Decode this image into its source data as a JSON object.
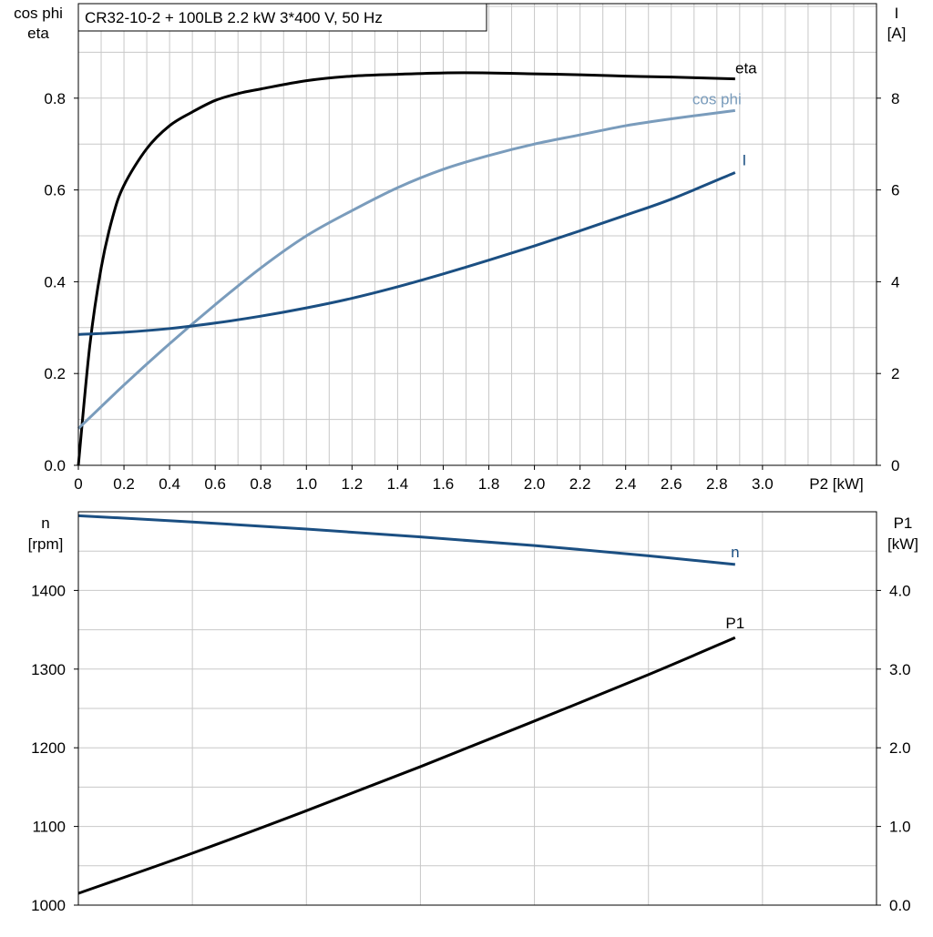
{
  "chart_data": [
    {
      "type": "line",
      "title": "CR32-10-2 + 100LB   2.2 kW   3*400 V, 50 Hz",
      "xlabel": "P2 [kW]",
      "ylabel_left": [
        "cos phi",
        "eta"
      ],
      "ylabel_right": [
        "I",
        "[A]"
      ],
      "xlim": [
        0,
        3.5
      ],
      "ylim_left": [
        0,
        1.0
      ],
      "ylim_right": [
        0,
        10
      ],
      "x_ticks": [
        "0",
        "0.2",
        "0.4",
        "0.6",
        "0.8",
        "1.0",
        "1.2",
        "1.4",
        "1.6",
        "1.8",
        "2.0",
        "2.2",
        "2.4",
        "2.6",
        "2.8",
        "3.0"
      ],
      "y_left_ticks": [
        "0.0",
        "0.2",
        "0.4",
        "0.6",
        "0.8"
      ],
      "y_right_ticks": [
        "0",
        "2",
        "4",
        "6",
        "8"
      ],
      "grid": true,
      "series": [
        {
          "name": "eta",
          "axis": "left",
          "color": "#000000",
          "x": [
            0,
            0.05,
            0.1,
            0.15,
            0.2,
            0.3,
            0.4,
            0.5,
            0.6,
            0.7,
            0.8,
            1.0,
            1.2,
            1.4,
            1.6,
            1.8,
            2.0,
            2.2,
            2.4,
            2.6,
            2.88
          ],
          "y": [
            0,
            0.26,
            0.43,
            0.54,
            0.61,
            0.69,
            0.74,
            0.77,
            0.795,
            0.81,
            0.82,
            0.838,
            0.848,
            0.852,
            0.855,
            0.855,
            0.853,
            0.851,
            0.848,
            0.846,
            0.842
          ]
        },
        {
          "name": "cos phi",
          "axis": "left",
          "color": "#7a9cbc",
          "x": [
            0,
            0.2,
            0.4,
            0.6,
            0.8,
            1.0,
            1.2,
            1.4,
            1.6,
            1.8,
            2.0,
            2.2,
            2.4,
            2.6,
            2.88
          ],
          "y": [
            0.08,
            0.175,
            0.265,
            0.35,
            0.43,
            0.5,
            0.555,
            0.605,
            0.645,
            0.675,
            0.7,
            0.72,
            0.74,
            0.755,
            0.773
          ]
        },
        {
          "name": "I",
          "axis": "right",
          "color": "#1b4f82",
          "x": [
            0,
            0.2,
            0.4,
            0.6,
            0.8,
            1.0,
            1.2,
            1.4,
            1.6,
            1.8,
            2.0,
            2.2,
            2.4,
            2.6,
            2.88
          ],
          "y": [
            2.85,
            2.9,
            2.98,
            3.1,
            3.25,
            3.43,
            3.64,
            3.89,
            4.17,
            4.47,
            4.78,
            5.11,
            5.45,
            5.8,
            6.38
          ]
        }
      ]
    },
    {
      "type": "line",
      "xlim": [
        0,
        3.5
      ],
      "ylabel_left": [
        "n",
        "[rpm]"
      ],
      "ylabel_right": [
        "P1",
        "[kW]"
      ],
      "ylim_left": [
        1000,
        1500
      ],
      "ylim_right": [
        0,
        5
      ],
      "y_left_ticks": [
        "1000",
        "1100",
        "1200",
        "1300",
        "1400"
      ],
      "y_right_ticks": [
        "0.0",
        "1.0",
        "2.0",
        "3.0",
        "4.0"
      ],
      "grid": true,
      "series": [
        {
          "name": "n",
          "axis": "left",
          "color": "#1b4f82",
          "x": [
            0,
            0.5,
            1.0,
            1.5,
            2.0,
            2.5,
            2.88
          ],
          "y": [
            1495,
            1487,
            1478,
            1468,
            1457,
            1444,
            1433
          ]
        },
        {
          "name": "P1",
          "axis": "right",
          "color": "#000000",
          "x": [
            0,
            0.5,
            1.0,
            1.5,
            2.0,
            2.5,
            2.88
          ],
          "y": [
            0.15,
            0.66,
            1.2,
            1.76,
            2.34,
            2.93,
            3.4
          ]
        }
      ]
    }
  ]
}
